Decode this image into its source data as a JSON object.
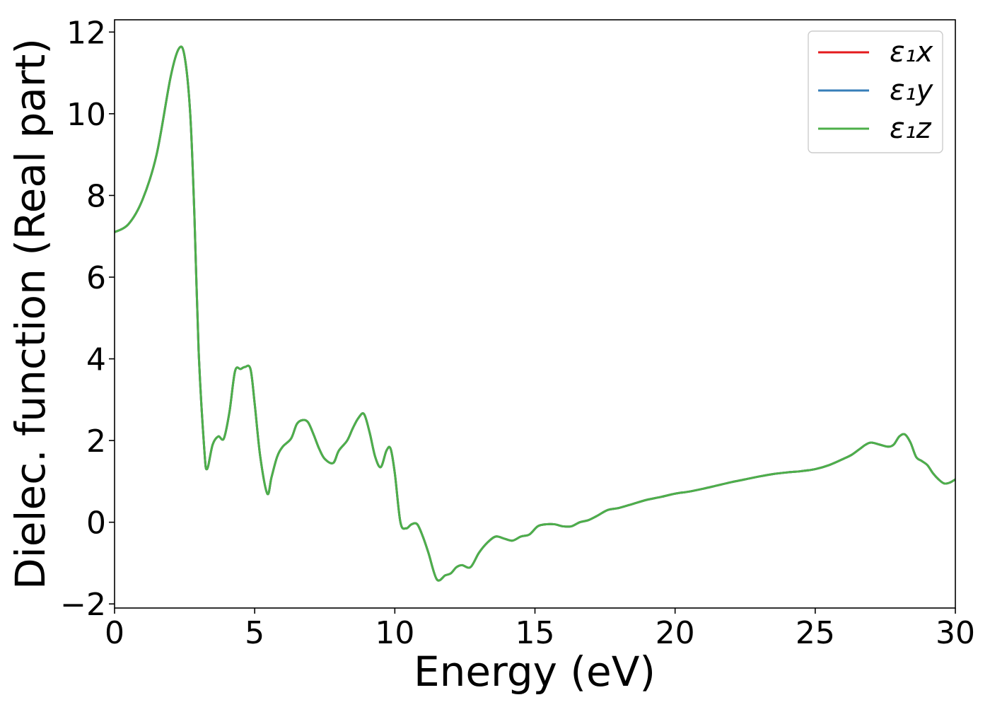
{
  "chart_data": {
    "type": "line",
    "title": "",
    "xlabel": "Energy (eV)",
    "ylabel": "Dielec. function (Real part)",
    "xlim": [
      0,
      30
    ],
    "ylim": [
      -2.1,
      12.3
    ],
    "xticks": [
      0,
      5,
      10,
      15,
      20,
      25,
      30
    ],
    "yticks": [
      -2,
      0,
      2,
      4,
      6,
      8,
      10,
      12
    ],
    "xtick_labels": [
      "0",
      "5",
      "10",
      "15",
      "20",
      "25",
      "30"
    ],
    "ytick_labels": [
      "−2",
      "0",
      "2",
      "4",
      "6",
      "8",
      "10",
      "12"
    ],
    "grid": false,
    "legend_position": "top-right",
    "x": [
      0,
      0.5,
      1.0,
      1.5,
      2.0,
      2.3,
      2.5,
      2.7,
      2.85,
      3.0,
      3.2,
      3.3,
      3.5,
      3.7,
      3.9,
      4.1,
      4.3,
      4.5,
      4.65,
      4.85,
      5.0,
      5.2,
      5.45,
      5.6,
      5.8,
      6.0,
      6.3,
      6.5,
      6.7,
      6.9,
      7.1,
      7.3,
      7.5,
      7.8,
      8.0,
      8.3,
      8.5,
      8.7,
      8.9,
      9.1,
      9.3,
      9.5,
      9.7,
      9.85,
      10.0,
      10.2,
      10.4,
      10.6,
      10.8,
      11.0,
      11.2,
      11.5,
      11.8,
      12.0,
      12.2,
      12.4,
      12.7,
      13.0,
      13.3,
      13.6,
      13.9,
      14.2,
      14.5,
      14.8,
      15.1,
      15.4,
      15.7,
      16.0,
      16.3,
      16.6,
      16.9,
      17.2,
      17.6,
      18.0,
      18.5,
      19.0,
      19.5,
      20.0,
      20.5,
      21.0,
      21.5,
      22.0,
      22.5,
      23.0,
      23.5,
      24.0,
      24.5,
      25.0,
      25.5,
      26.0,
      26.3,
      26.6,
      26.8,
      27.0,
      27.3,
      27.6,
      27.8,
      28.0,
      28.2,
      28.4,
      28.6,
      28.8,
      29.0,
      29.2,
      29.4,
      29.6,
      29.8,
      30.0
    ],
    "series": [
      {
        "name": "ε₁x",
        "color": "#e41a1c",
        "values": [
          7.1,
          7.3,
          7.9,
          9.0,
          10.9,
          11.6,
          11.4,
          10.0,
          7.5,
          4.2,
          1.8,
          1.3,
          1.9,
          2.1,
          2.05,
          2.7,
          3.7,
          3.75,
          3.8,
          3.75,
          2.9,
          1.6,
          0.7,
          1.1,
          1.6,
          1.85,
          2.05,
          2.4,
          2.5,
          2.45,
          2.15,
          1.8,
          1.55,
          1.45,
          1.75,
          2.0,
          2.3,
          2.55,
          2.65,
          2.2,
          1.6,
          1.35,
          1.75,
          1.8,
          1.2,
          0.0,
          -0.15,
          -0.05,
          -0.05,
          -0.35,
          -0.75,
          -1.4,
          -1.3,
          -1.25,
          -1.1,
          -1.05,
          -1.1,
          -0.75,
          -0.5,
          -0.35,
          -0.4,
          -0.45,
          -0.35,
          -0.3,
          -0.1,
          -0.05,
          -0.05,
          -0.1,
          -0.1,
          0.0,
          0.05,
          0.15,
          0.3,
          0.35,
          0.45,
          0.55,
          0.62,
          0.7,
          0.75,
          0.82,
          0.9,
          0.98,
          1.05,
          1.12,
          1.18,
          1.22,
          1.25,
          1.3,
          1.4,
          1.55,
          1.65,
          1.8,
          1.9,
          1.95,
          1.9,
          1.85,
          1.9,
          2.1,
          2.15,
          1.95,
          1.6,
          1.5,
          1.4,
          1.2,
          1.05,
          0.95,
          0.97,
          1.05
        ]
      },
      {
        "name": "ε₁y",
        "color": "#377eb8",
        "values": [
          7.1,
          7.3,
          7.9,
          9.0,
          10.9,
          11.6,
          11.4,
          10.0,
          7.5,
          4.2,
          1.8,
          1.3,
          1.9,
          2.1,
          2.05,
          2.7,
          3.7,
          3.75,
          3.8,
          3.75,
          2.9,
          1.6,
          0.7,
          1.1,
          1.6,
          1.85,
          2.05,
          2.4,
          2.5,
          2.45,
          2.15,
          1.8,
          1.55,
          1.45,
          1.75,
          2.0,
          2.3,
          2.55,
          2.65,
          2.2,
          1.6,
          1.35,
          1.75,
          1.8,
          1.2,
          0.0,
          -0.15,
          -0.05,
          -0.05,
          -0.35,
          -0.75,
          -1.4,
          -1.3,
          -1.25,
          -1.1,
          -1.05,
          -1.1,
          -0.75,
          -0.5,
          -0.35,
          -0.4,
          -0.45,
          -0.35,
          -0.3,
          -0.1,
          -0.05,
          -0.05,
          -0.1,
          -0.1,
          0.0,
          0.05,
          0.15,
          0.3,
          0.35,
          0.45,
          0.55,
          0.62,
          0.7,
          0.75,
          0.82,
          0.9,
          0.98,
          1.05,
          1.12,
          1.18,
          1.22,
          1.25,
          1.3,
          1.4,
          1.55,
          1.65,
          1.8,
          1.9,
          1.95,
          1.9,
          1.85,
          1.9,
          2.1,
          2.15,
          1.95,
          1.6,
          1.5,
          1.4,
          1.2,
          1.05,
          0.95,
          0.97,
          1.05
        ]
      },
      {
        "name": "ε₁z",
        "color": "#4daf4a",
        "values": [
          7.1,
          7.3,
          7.9,
          9.0,
          10.9,
          11.6,
          11.4,
          10.0,
          7.5,
          4.2,
          1.8,
          1.3,
          1.9,
          2.1,
          2.05,
          2.7,
          3.7,
          3.75,
          3.8,
          3.75,
          2.9,
          1.6,
          0.7,
          1.1,
          1.6,
          1.85,
          2.05,
          2.4,
          2.5,
          2.45,
          2.15,
          1.8,
          1.55,
          1.45,
          1.75,
          2.0,
          2.3,
          2.55,
          2.65,
          2.2,
          1.6,
          1.35,
          1.75,
          1.8,
          1.2,
          0.0,
          -0.15,
          -0.05,
          -0.05,
          -0.35,
          -0.75,
          -1.4,
          -1.3,
          -1.25,
          -1.1,
          -1.05,
          -1.1,
          -0.75,
          -0.5,
          -0.35,
          -0.4,
          -0.45,
          -0.35,
          -0.3,
          -0.1,
          -0.05,
          -0.05,
          -0.1,
          -0.1,
          0.0,
          0.05,
          0.15,
          0.3,
          0.35,
          0.45,
          0.55,
          0.62,
          0.7,
          0.75,
          0.82,
          0.9,
          0.98,
          1.05,
          1.12,
          1.18,
          1.22,
          1.25,
          1.3,
          1.4,
          1.55,
          1.65,
          1.8,
          1.9,
          1.95,
          1.9,
          1.85,
          1.9,
          2.1,
          2.15,
          1.95,
          1.6,
          1.5,
          1.4,
          1.2,
          1.05,
          0.95,
          0.97,
          1.05
        ]
      }
    ]
  }
}
